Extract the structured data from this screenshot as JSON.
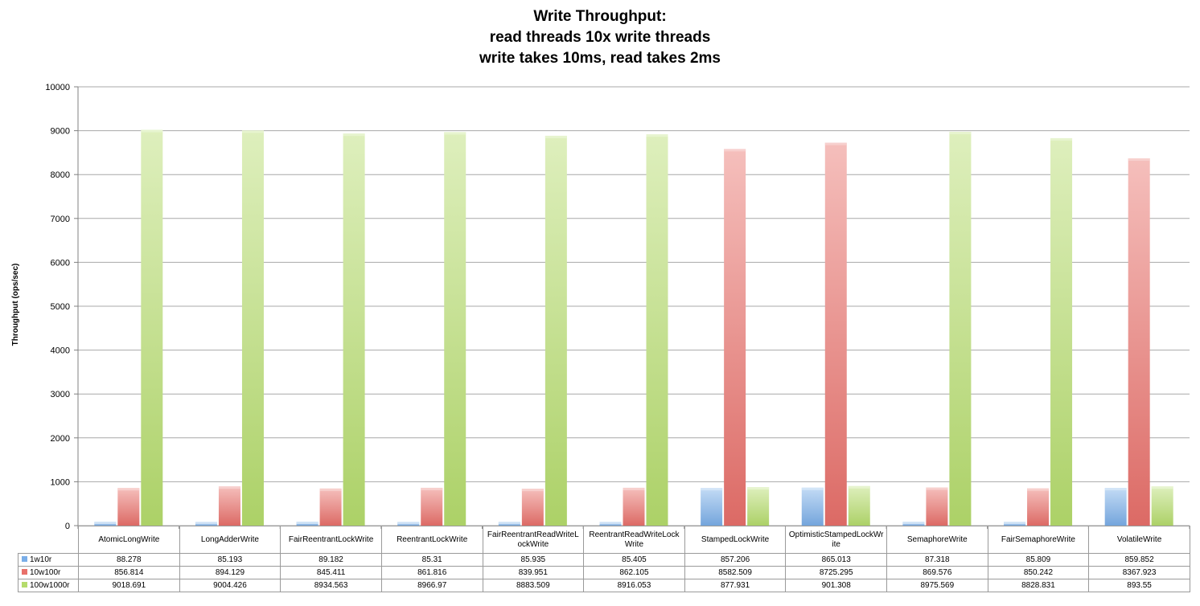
{
  "chart_data": {
    "type": "bar",
    "title_lines": [
      "Write Throughput:",
      "read threads 10x write threads",
      "write takes 10ms, read takes 2ms"
    ],
    "ylabel": "Throughput (ops/sec)",
    "xlabel": "",
    "ylim": [
      0,
      10000
    ],
    "yticks": [
      "0",
      "1000",
      "2000",
      "3000",
      "4000",
      "5000",
      "6000",
      "7000",
      "8000",
      "9000",
      "10000"
    ],
    "grid": true,
    "legend": "data-table",
    "categories": [
      "AtomicLongWrite",
      "LongAdderWrite",
      "FairReentrantLockWrite",
      "ReentrantLockWrite",
      "FairReentrantReadWriteLockWrite",
      "ReentrantReadWriteLockWrite",
      "StampedLockWrite",
      "OptimisticStampedLockWrite",
      "SemaphoreWrite",
      "FairSemaphoreWrite",
      "VolatileWrite"
    ],
    "series": [
      {
        "name": "1w10r",
        "color": "#7aaee8",
        "values": [
          88.278,
          85.193,
          89.182,
          85.31,
          85.935,
          85.405,
          857.206,
          865.013,
          87.318,
          85.809,
          859.852
        ],
        "labels": [
          "88.278",
          "85.193",
          "89.182",
          "85.31",
          "85.935",
          "85.405",
          "857.206",
          "865.013",
          "87.318",
          "85.809",
          "859.852"
        ]
      },
      {
        "name": "10w100r",
        "color": "#e8706a",
        "values": [
          856.814,
          894.129,
          845.411,
          861.816,
          839.951,
          862.105,
          8582.509,
          8725.295,
          869.576,
          850.242,
          8367.923
        ],
        "labels": [
          "856.814",
          "894.129",
          "845.411",
          "861.816",
          "839.951",
          "862.105",
          "8582.509",
          "8725.295",
          "869.576",
          "850.242",
          "8367.923"
        ]
      },
      {
        "name": "100w1000r",
        "color": "#b5dc6c",
        "values": [
          9018.691,
          9004.426,
          8934.563,
          8966.97,
          8883.509,
          8916.053,
          877.931,
          901.308,
          8975.569,
          8828.831,
          893.55
        ],
        "labels": [
          "9018.691",
          "9004.426",
          "8934.563",
          "8966.97",
          "8883.509",
          "8916.053",
          "877.931",
          "901.308",
          "8975.569",
          "8828.831",
          "893.55"
        ]
      }
    ]
  }
}
